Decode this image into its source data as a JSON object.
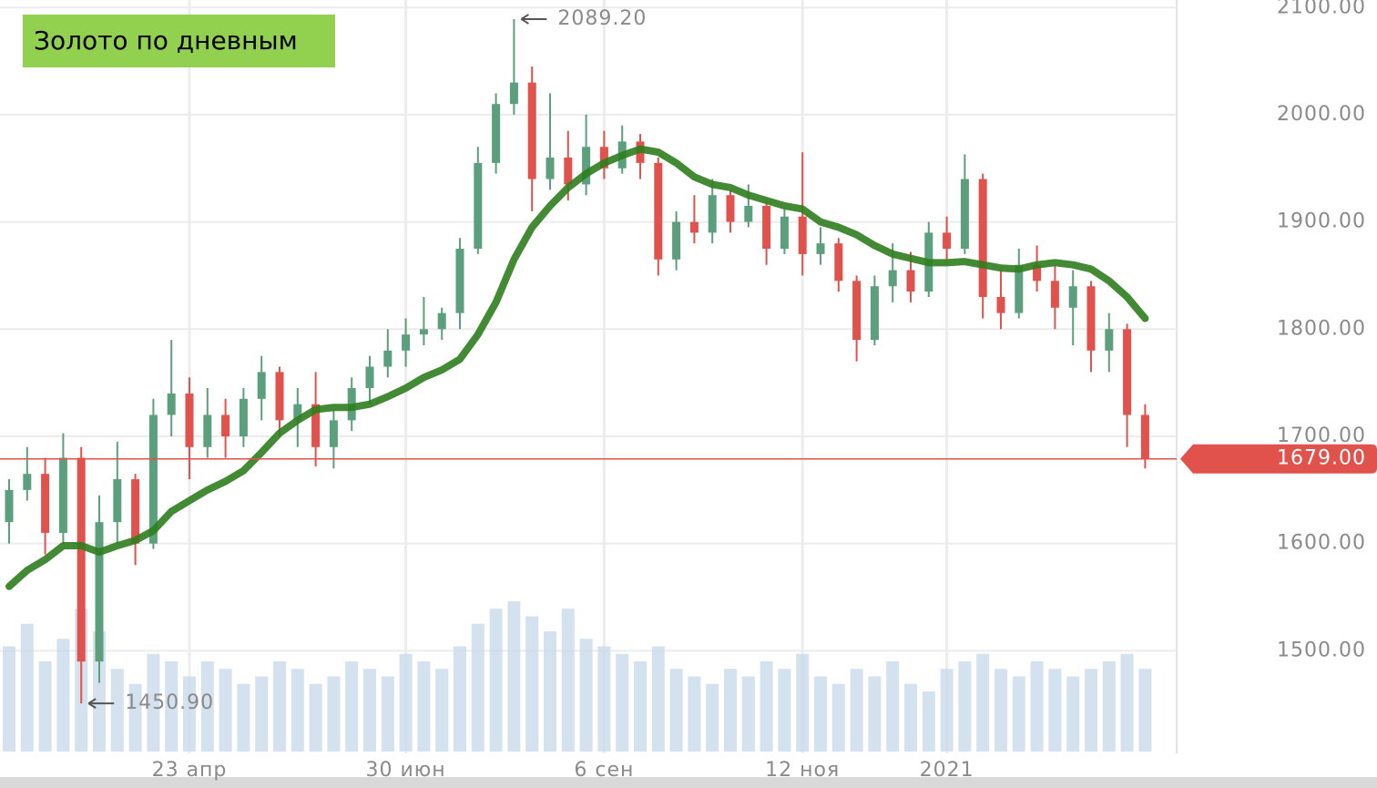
{
  "chart_data": {
    "type": "candlestick",
    "title": "Золото по дневным",
    "categories": [
      null,
      null,
      null,
      null,
      null,
      null,
      null,
      null,
      null,
      null,
      "23 апр",
      null,
      null,
      null,
      null,
      null,
      null,
      null,
      null,
      null,
      null,
      null,
      "30 июн",
      null,
      null,
      null,
      null,
      null,
      null,
      null,
      null,
      null,
      null,
      "6 сен",
      null,
      null,
      null,
      null,
      null,
      null,
      null,
      null,
      null,
      null,
      "12 ноя",
      null,
      null,
      null,
      null,
      null,
      null,
      null,
      "2021",
      null,
      null,
      null,
      null,
      null,
      null,
      null,
      null,
      null,
      null,
      null
    ],
    "open": [
      1620,
      1650,
      1665,
      1610,
      1680,
      1490,
      1620,
      1660,
      1600,
      1720,
      1740,
      1690,
      1720,
      1700,
      1735,
      1760,
      1715,
      1730,
      1690,
      1715,
      1745,
      1765,
      1780,
      1795,
      1800,
      1815,
      1875,
      1955,
      2010,
      2030,
      1940,
      1960,
      1935,
      1970,
      1950,
      1975,
      1955,
      1865,
      1900,
      1890,
      1925,
      1900,
      1915,
      1875,
      1905,
      1870,
      1880,
      1845,
      1790,
      1840,
      1855,
      1835,
      1890,
      1875,
      1940,
      1830,
      1815,
      1860,
      1845,
      1820,
      1840,
      1780,
      1800,
      1720
    ],
    "high": [
      1660,
      1690,
      1680,
      1703,
      1690,
      1645,
      1695,
      1665,
      1735,
      1790,
      1755,
      1745,
      1735,
      1745,
      1775,
      1765,
      1745,
      1760,
      1725,
      1755,
      1775,
      1800,
      1810,
      1830,
      1820,
      1885,
      1970,
      2020,
      2089.2,
      2045,
      2020,
      1985,
      2000,
      1985,
      1990,
      1982,
      1960,
      1910,
      1925,
      1940,
      1930,
      1935,
      1920,
      1912,
      1965,
      1895,
      1885,
      1850,
      1850,
      1880,
      1872,
      1900,
      1905,
      1963,
      1945,
      1855,
      1875,
      1878,
      1860,
      1855,
      1845,
      1815,
      1805,
      1730
    ],
    "low": [
      1600,
      1640,
      1590,
      1600,
      1450.9,
      1470,
      1600,
      1580,
      1595,
      1700,
      1660,
      1680,
      1680,
      1690,
      1715,
      1700,
      1690,
      1672,
      1670,
      1705,
      1730,
      1755,
      1765,
      1785,
      1790,
      1800,
      1870,
      1945,
      2000,
      1910,
      1930,
      1920,
      1925,
      1940,
      1945,
      1940,
      1850,
      1855,
      1880,
      1880,
      1890,
      1895,
      1860,
      1870,
      1850,
      1860,
      1835,
      1770,
      1785,
      1825,
      1825,
      1830,
      1865,
      1870,
      1810,
      1800,
      1810,
      1835,
      1800,
      1785,
      1760,
      1760,
      1690,
      1670
    ],
    "close": [
      1650,
      1665,
      1610,
      1680,
      1490,
      1620,
      1660,
      1600,
      1720,
      1740,
      1690,
      1720,
      1700,
      1735,
      1760,
      1715,
      1730,
      1690,
      1715,
      1745,
      1765,
      1780,
      1795,
      1800,
      1815,
      1875,
      1955,
      2010,
      2030,
      1940,
      1960,
      1935,
      1970,
      1950,
      1975,
      1955,
      1865,
      1900,
      1890,
      1925,
      1900,
      1915,
      1875,
      1905,
      1870,
      1880,
      1845,
      1790,
      1840,
      1855,
      1835,
      1890,
      1875,
      1940,
      1830,
      1815,
      1860,
      1845,
      1820,
      1840,
      1780,
      1800,
      1720,
      1679
    ],
    "up_color": "#5b9f7c",
    "down_color": "#e2524c",
    "series": [
      {
        "color": "#2e7d1e",
        "values": [
          1560,
          1575,
          1585,
          1598,
          1598,
          1592,
          1598,
          1603,
          1612,
          1630,
          1640,
          1650,
          1658,
          1668,
          1685,
          1703,
          1715,
          1725,
          1727,
          1727,
          1730,
          1737,
          1745,
          1755,
          1762,
          1772,
          1795,
          1825,
          1865,
          1895,
          1915,
          1932,
          1945,
          1955,
          1962,
          1968,
          1965,
          1955,
          1942,
          1935,
          1932,
          1925,
          1920,
          1915,
          1912,
          1900,
          1895,
          1888,
          1878,
          1870,
          1866,
          1862,
          1862,
          1863,
          1860,
          1857,
          1856,
          1860,
          1862,
          1860,
          1856,
          1845,
          1830,
          1810
        ]
      },
      {
        "color": "#c9d9ea",
        "axis": "y2",
        "values": [
          14,
          17,
          12,
          15,
          19,
          16,
          11,
          9,
          13,
          12,
          10,
          12,
          11,
          9,
          10,
          12,
          11,
          9,
          10,
          12,
          11,
          10,
          13,
          12,
          11,
          14,
          17,
          19,
          20,
          18,
          16,
          19,
          15,
          14,
          13,
          12,
          14,
          11,
          10,
          9,
          11,
          10,
          12,
          11,
          13,
          10,
          9,
          11,
          10,
          12,
          9,
          8,
          11,
          12,
          13,
          11,
          10,
          12,
          11,
          10,
          11,
          12,
          13,
          11
        ]
      }
    ],
    "ylim": [
      1406,
      2107
    ],
    "y2lim": [
      0,
      100
    ],
    "yticks": [
      {
        "value": 1500,
        "label": "1500.00"
      },
      {
        "value": 1600,
        "label": "1600.00"
      },
      {
        "value": 1700,
        "label": "1700.00"
      },
      {
        "value": 1800,
        "label": "1800.00"
      },
      {
        "value": 1900,
        "label": "1900.00"
      },
      {
        "value": 2000,
        "label": "2000.00"
      },
      {
        "value": 2100,
        "label": "2100.00"
      }
    ],
    "annotations": [
      {
        "value": 2089.2,
        "label": "2089.20"
      },
      {
        "value": 1450.9,
        "label": "1450.90"
      }
    ],
    "last_price": {
      "value": 1679,
      "label": "1679.00",
      "color": "#e2524c"
    },
    "grid": true
  }
}
